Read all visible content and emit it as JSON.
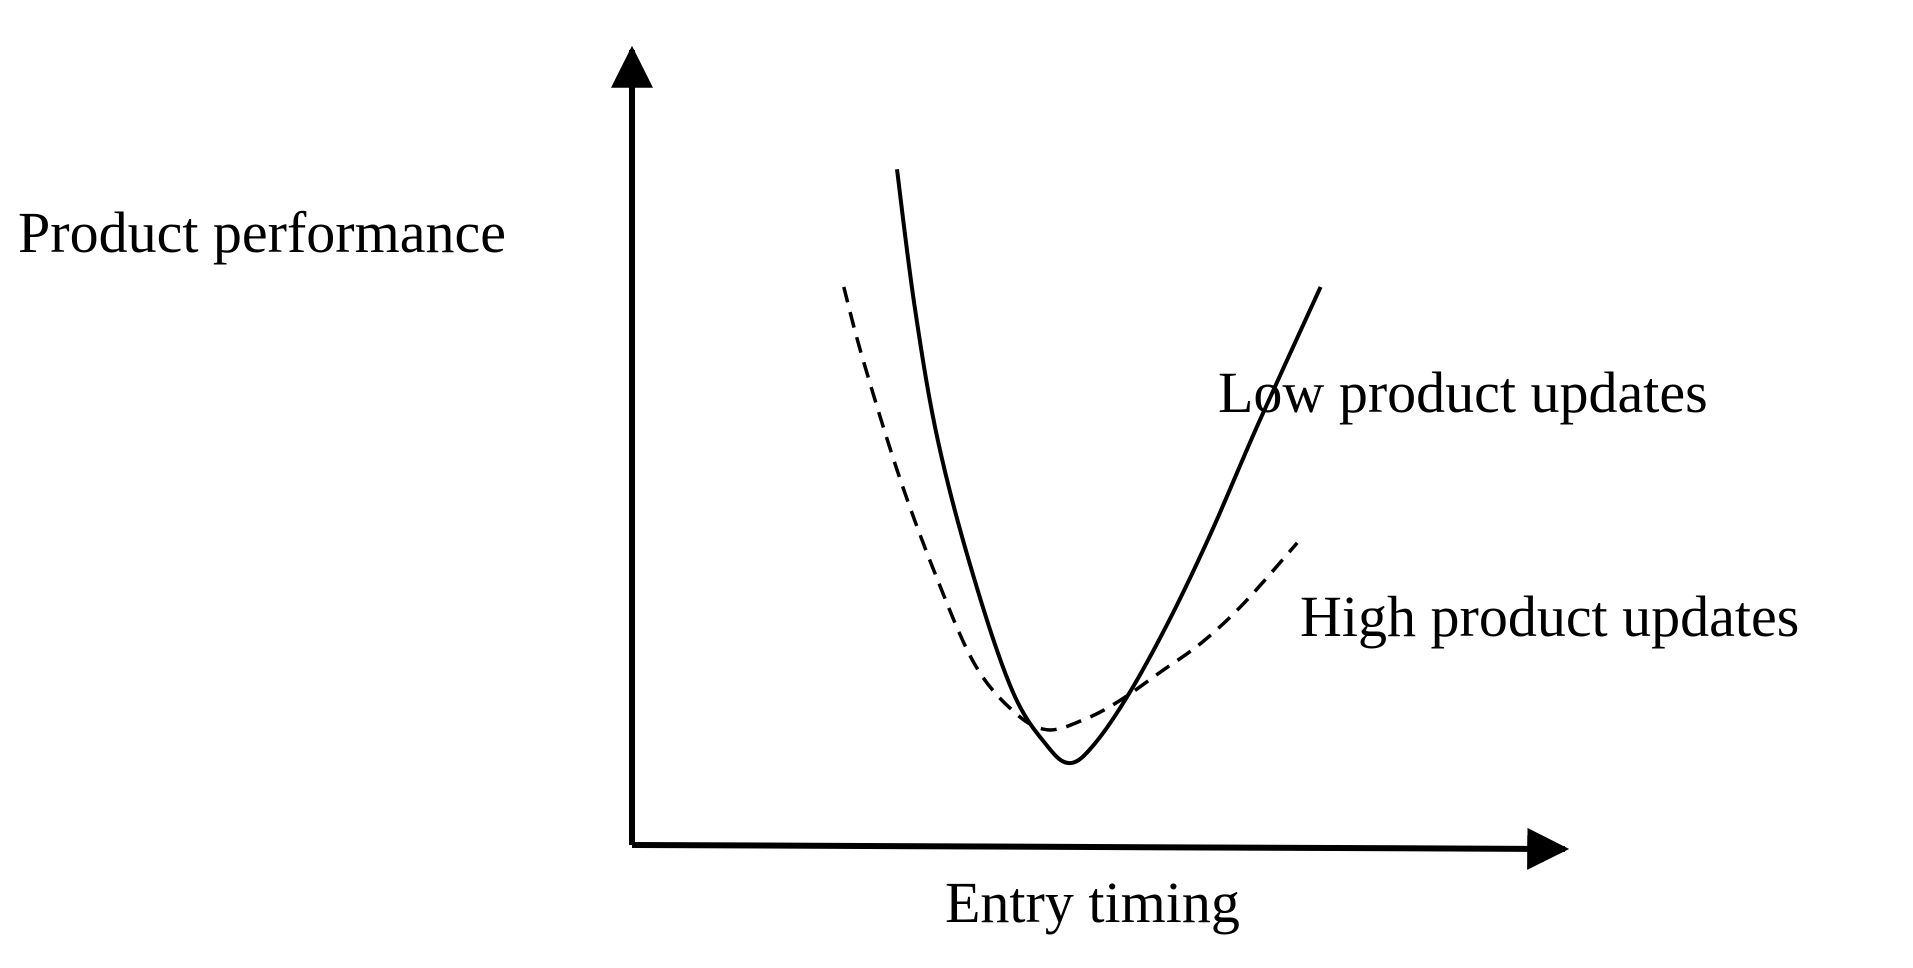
{
  "chart_data": {
    "type": "line",
    "title": "",
    "xlabel": "Entry timing",
    "ylabel": "Product performance",
    "xlim": [
      0,
      100
    ],
    "ylim": [
      0,
      100
    ],
    "grid": false,
    "legend": "none",
    "x_ticks": [],
    "y_ticks": [],
    "series": [
      {
        "name": "Low product updates",
        "style": "solid",
        "color": "#000000",
        "x": [
          28.4,
          30.3,
          32.8,
          36.6,
          40.8,
          44.4,
          46.9,
          49.5,
          53.4,
          57.9,
          62.3,
          67.2,
          73.8
        ],
        "y": [
          85.0,
          67.7,
          50.8,
          33.8,
          19.3,
          12.6,
          10.3,
          12.6,
          19.3,
          29.0,
          39.9,
          53.2,
          70.2
        ]
      },
      {
        "name": "High product updates",
        "style": "dashed",
        "color": "#000000",
        "x": [
          22.7,
          24.6,
          28.4,
          32.2,
          36.6,
          40.8,
          44.4,
          48.3,
          52.2,
          56.7,
          61.0,
          65.5,
          71.3
        ],
        "y": [
          70.2,
          61.7,
          47.2,
          35.0,
          23.0,
          16.9,
          14.5,
          15.7,
          18.1,
          21.8,
          25.4,
          30.3,
          38.0
        ]
      }
    ],
    "annotations": [
      {
        "text": "Low product updates",
        "series": "Low product updates"
      },
      {
        "text": "High product updates",
        "series": "High product updates"
      }
    ]
  }
}
